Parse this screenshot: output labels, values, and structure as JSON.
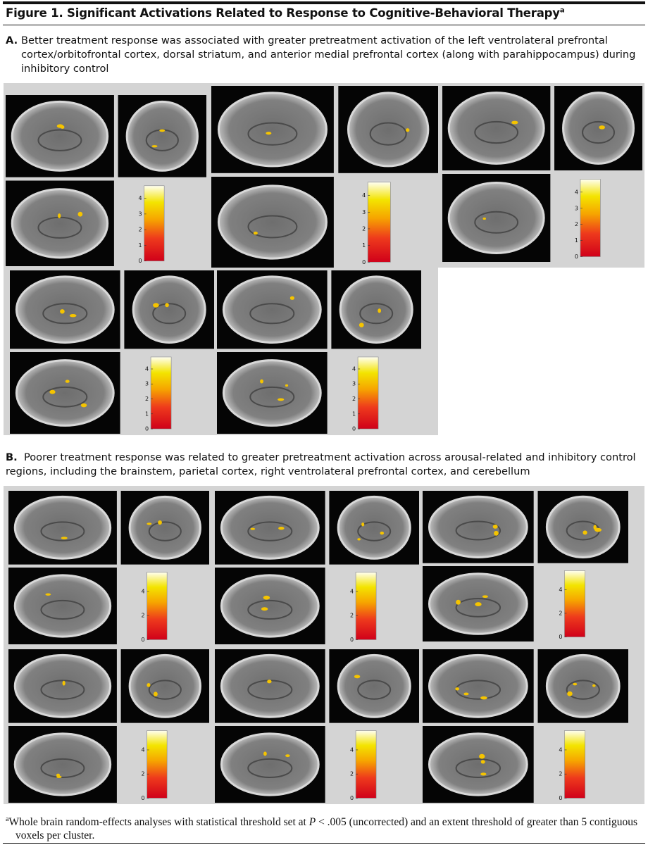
{
  "title": "Figure 1. Significant Activations Related to Response to Cognitive-Behavioral Therapy",
  "title_note": "a",
  "panel_a": {
    "label": "A.",
    "text": "Better treatment response was associated with greater pretreatment activation of the left ventrolateral prefrontal cortex/orbitofrontal cortex, dorsal striatum, and anterior medial prefrontal cortex (along with parahippocampus) during inhibitory control",
    "colorbars": [
      {
        "clim": [
          0,
          4.8
        ],
        "ticks": [
          0,
          1,
          2,
          3,
          4
        ]
      },
      {
        "clim": [
          0,
          4.8
        ],
        "ticks": [
          0,
          1,
          2,
          3,
          4
        ]
      },
      {
        "clim": [
          0,
          4.8
        ],
        "ticks": [
          0,
          1,
          2,
          3,
          4
        ]
      },
      {
        "clim": [
          0,
          4.8
        ],
        "ticks": [
          0,
          1,
          2,
          3,
          4
        ]
      },
      {
        "clim": [
          0,
          4.8
        ],
        "ticks": [
          0,
          1,
          2,
          3,
          4
        ]
      }
    ]
  },
  "panel_b": {
    "label": "B.",
    "text": "Poorer treatment response was related to greater pretreatment activation across arousal-related and inhibitory control regions, including the brainstem, parietal cortex, right ventrolateral prefrontal cortex, and cerebellum",
    "colorbars": [
      {
        "clim": [
          0,
          5.6
        ],
        "ticks": [
          0,
          2,
          4
        ]
      },
      {
        "clim": [
          0,
          5.6
        ],
        "ticks": [
          0,
          2,
          4
        ]
      },
      {
        "clim": [
          0,
          5.6
        ],
        "ticks": [
          0,
          2,
          4
        ]
      },
      {
        "clim": [
          0,
          5.6
        ],
        "ticks": [
          0,
          2,
          4
        ]
      },
      {
        "clim": [
          0,
          5.6
        ],
        "ticks": [
          0,
          2,
          4
        ]
      },
      {
        "clim": [
          0,
          5.6
        ],
        "ticks": [
          0,
          2,
          4
        ]
      }
    ]
  },
  "footnote": {
    "marker": "a",
    "before": "Whole brain random-effects analyses with statistical threshold set at ",
    "p": "P",
    "after": " < .005 (uncorrected) and an extent threshold of greater than 5 contiguous voxels per cluster."
  }
}
